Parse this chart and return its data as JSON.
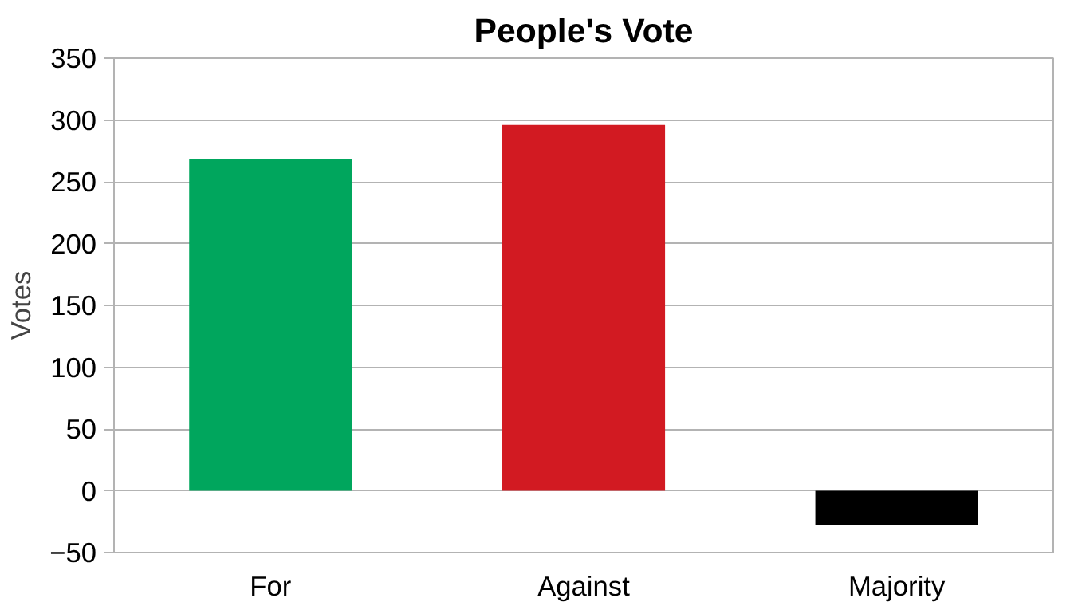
{
  "chart_data": {
    "type": "bar",
    "title": "People's Vote",
    "ylabel": "Votes",
    "categories": [
      "For",
      "Against",
      "Majority"
    ],
    "values": [
      268,
      296,
      -28
    ],
    "colors": [
      "#00a65d",
      "#d21a22",
      "#000000"
    ],
    "ylim": [
      -50,
      350
    ],
    "yticks": [
      -50,
      0,
      50,
      100,
      150,
      200,
      250,
      300,
      350
    ],
    "grid": "y"
  }
}
